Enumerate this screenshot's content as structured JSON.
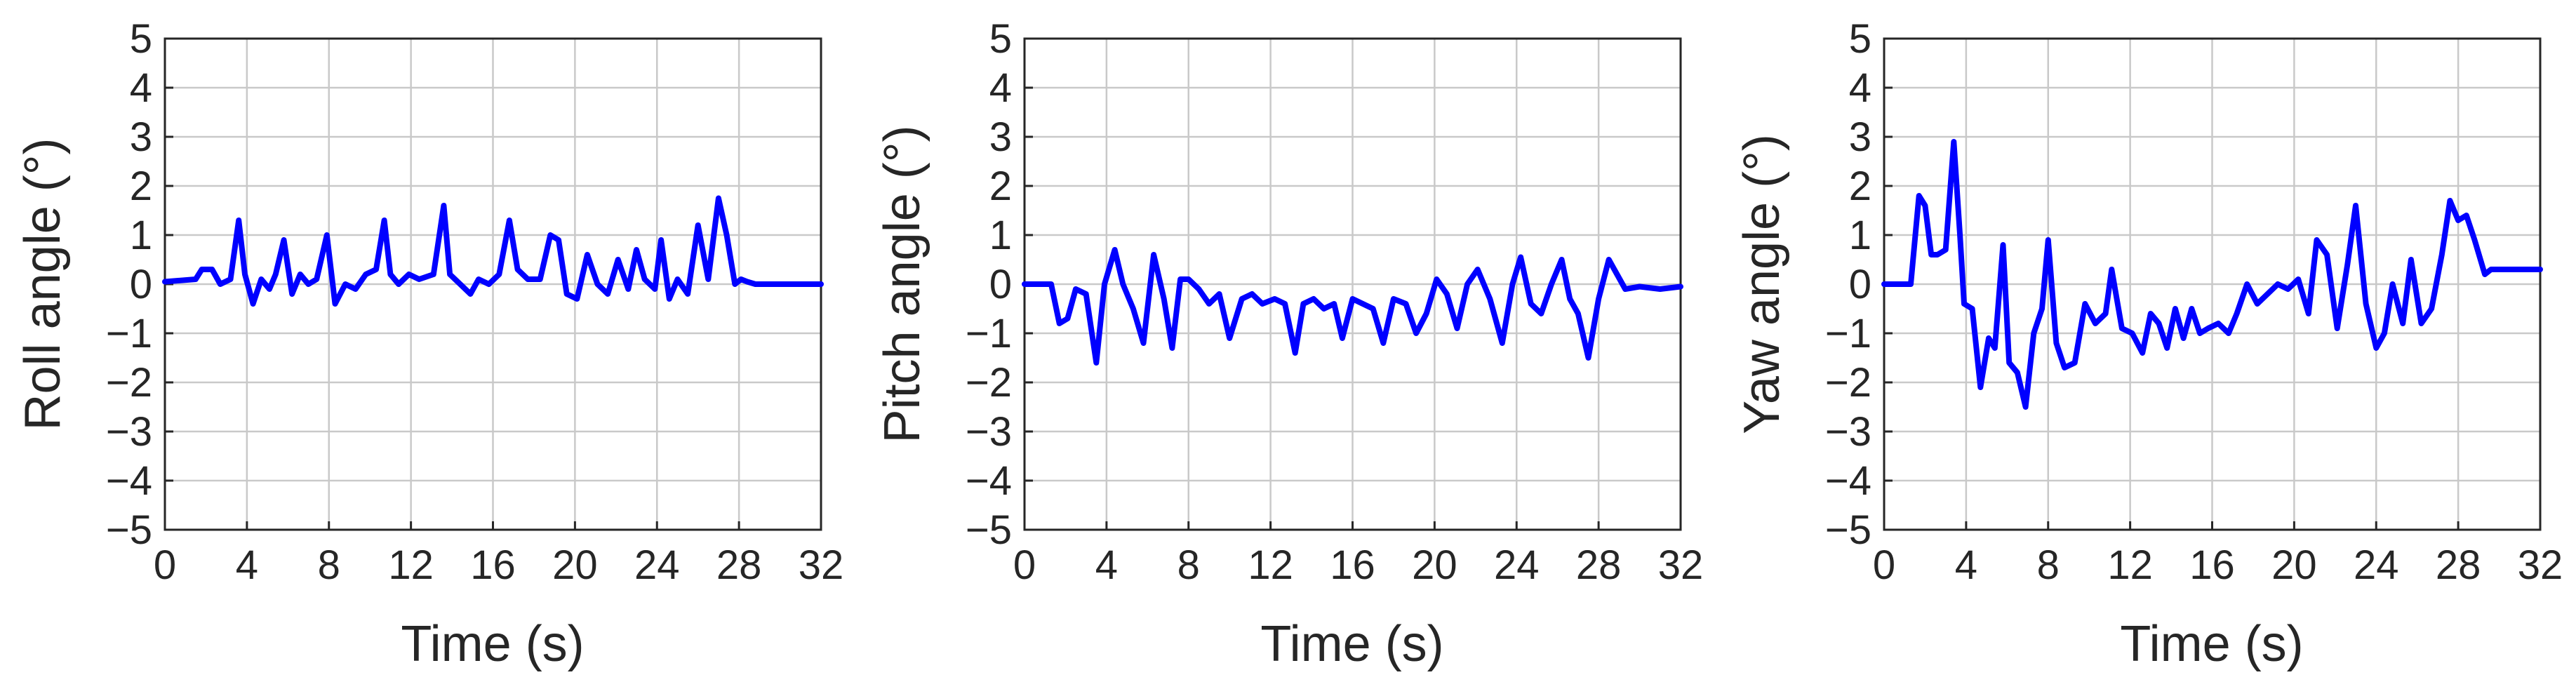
{
  "chart_data": [
    {
      "type": "line",
      "ylabel": "Roll angle (°)",
      "xlabel": "Time (s)",
      "xlim": [
        0,
        32
      ],
      "ylim": [
        -5,
        5
      ],
      "xticks": [
        0,
        4,
        8,
        12,
        16,
        20,
        24,
        28,
        32
      ],
      "yticks": [
        5,
        4,
        3,
        2,
        1,
        0,
        -1,
        -2,
        -3,
        -4,
        -5
      ],
      "ytick_labels": [
        "5",
        "4",
        "3",
        "2",
        "1",
        "0",
        "−1",
        "−2",
        "−3",
        "−4",
        "−5"
      ],
      "grid": true,
      "series_color": "#0000ff",
      "x": [
        0,
        1.5,
        1.8,
        2.3,
        2.7,
        3.2,
        3.6,
        3.9,
        4.3,
        4.7,
        5.1,
        5.4,
        5.8,
        6.2,
        6.6,
        7.0,
        7.4,
        7.9,
        8.3,
        8.8,
        9.3,
        9.8,
        10.3,
        10.7,
        11.0,
        11.4,
        11.9,
        12.4,
        13.1,
        13.6,
        13.9,
        14.4,
        14.9,
        15.3,
        15.8,
        16.3,
        16.8,
        17.2,
        17.7,
        18.3,
        18.8,
        19.2,
        19.6,
        20.1,
        20.6,
        21.1,
        21.6,
        22.1,
        22.6,
        23.0,
        23.4,
        23.9,
        24.2,
        24.6,
        25.0,
        25.5,
        26.0,
        26.5,
        27.0,
        27.4,
        27.8,
        28.1,
        28.4,
        28.8,
        29.3,
        30.0,
        31.0,
        32.0
      ],
      "y": [
        0.05,
        0.1,
        0.3,
        0.3,
        0.0,
        0.1,
        1.3,
        0.2,
        -0.4,
        0.1,
        -0.1,
        0.2,
        0.9,
        -0.2,
        0.2,
        0.0,
        0.1,
        1.0,
        -0.4,
        0.0,
        -0.1,
        0.2,
        0.3,
        1.3,
        0.2,
        0.0,
        0.2,
        0.1,
        0.2,
        1.6,
        0.2,
        0.0,
        -0.2,
        0.1,
        0.0,
        0.2,
        1.3,
        0.3,
        0.1,
        0.1,
        1.0,
        0.9,
        -0.2,
        -0.3,
        0.6,
        0.0,
        -0.2,
        0.5,
        -0.1,
        0.7,
        0.1,
        -0.1,
        0.9,
        -0.3,
        0.1,
        -0.2,
        1.2,
        0.1,
        1.75,
        1.0,
        0.0,
        0.1,
        0.05,
        0.0,
        0.0,
        0.0,
        0.0,
        0.0
      ]
    },
    {
      "type": "line",
      "ylabel": "Pitch angle (°)",
      "xlabel": "Time (s)",
      "xlim": [
        0,
        32
      ],
      "ylim": [
        -5,
        5
      ],
      "xticks": [
        0,
        4,
        8,
        12,
        16,
        20,
        24,
        28,
        32
      ],
      "yticks": [
        5,
        4,
        3,
        2,
        1,
        0,
        -1,
        -2,
        -3,
        -4,
        -5
      ],
      "ytick_labels": [
        "5",
        "4",
        "3",
        "2",
        "1",
        "0",
        "−1",
        "−2",
        "−3",
        "−4",
        "−5"
      ],
      "grid": true,
      "series_color": "#0000ff",
      "x": [
        0,
        1.3,
        1.7,
        2.1,
        2.5,
        3.0,
        3.5,
        3.9,
        4.4,
        4.8,
        5.3,
        5.8,
        6.3,
        6.8,
        7.2,
        7.6,
        8.0,
        8.5,
        9.0,
        9.5,
        10.0,
        10.6,
        11.1,
        11.6,
        12.2,
        12.7,
        13.2,
        13.6,
        14.1,
        14.6,
        15.1,
        15.5,
        16.0,
        16.5,
        17.0,
        17.5,
        18.0,
        18.6,
        19.1,
        19.6,
        20.1,
        20.6,
        21.1,
        21.6,
        22.1,
        22.7,
        23.3,
        23.8,
        24.2,
        24.7,
        25.2,
        25.7,
        26.2,
        26.6,
        27.0,
        27.5,
        28.0,
        28.5,
        28.9,
        29.3,
        30.0,
        31.0,
        32.0
      ],
      "y": [
        0.0,
        0.0,
        -0.8,
        -0.7,
        -0.1,
        -0.2,
        -1.6,
        0.0,
        0.7,
        0.0,
        -0.5,
        -1.2,
        0.6,
        -0.3,
        -1.3,
        0.1,
        0.1,
        -0.1,
        -0.4,
        -0.2,
        -1.1,
        -0.3,
        -0.2,
        -0.4,
        -0.3,
        -0.4,
        -1.4,
        -0.4,
        -0.3,
        -0.5,
        -0.4,
        -1.1,
        -0.3,
        -0.4,
        -0.5,
        -1.2,
        -0.3,
        -0.4,
        -1.0,
        -0.6,
        0.1,
        -0.2,
        -0.9,
        0.0,
        0.3,
        -0.3,
        -1.2,
        0.0,
        0.55,
        -0.4,
        -0.6,
        0.0,
        0.5,
        -0.3,
        -0.6,
        -1.5,
        -0.3,
        0.5,
        0.2,
        -0.1,
        -0.05,
        -0.1,
        -0.05
      ]
    },
    {
      "type": "line",
      "ylabel": "Yaw angle (°)",
      "xlabel": "Time (s)",
      "xlim": [
        0,
        32
      ],
      "ylim": [
        -5,
        5
      ],
      "xticks": [
        0,
        4,
        8,
        12,
        16,
        20,
        24,
        28,
        32
      ],
      "yticks": [
        5,
        4,
        3,
        2,
        1,
        0,
        -1,
        -2,
        -3,
        -4,
        -5
      ],
      "ytick_labels": [
        "5",
        "4",
        "3",
        "2",
        "1",
        "0",
        "−1",
        "−2",
        "−3",
        "−4",
        "−5"
      ],
      "grid": true,
      "series_color": "#0000ff",
      "x": [
        0,
        1.3,
        1.7,
        2.0,
        2.3,
        2.6,
        3.0,
        3.4,
        3.7,
        3.9,
        4.3,
        4.7,
        5.1,
        5.4,
        5.8,
        6.1,
        6.5,
        6.9,
        7.3,
        7.7,
        8.0,
        8.4,
        8.8,
        9.3,
        9.8,
        10.3,
        10.8,
        11.1,
        11.6,
        12.1,
        12.6,
        13.0,
        13.4,
        13.8,
        14.2,
        14.6,
        15.0,
        15.4,
        15.8,
        16.3,
        16.8,
        17.2,
        17.7,
        18.2,
        18.7,
        19.2,
        19.7,
        20.2,
        20.7,
        21.1,
        21.6,
        22.1,
        22.6,
        23.0,
        23.5,
        24.0,
        24.4,
        24.8,
        25.3,
        25.7,
        26.2,
        26.7,
        27.2,
        27.6,
        28.0,
        28.4,
        28.8,
        29.3,
        29.6,
        30.5,
        31.5,
        32.0
      ],
      "y": [
        0.0,
        0.0,
        1.8,
        1.6,
        0.6,
        0.6,
        0.7,
        2.9,
        1.0,
        -0.4,
        -0.5,
        -2.1,
        -1.1,
        -1.3,
        0.8,
        -1.6,
        -1.8,
        -2.5,
        -1.0,
        -0.5,
        0.9,
        -1.2,
        -1.7,
        -1.6,
        -0.4,
        -0.8,
        -0.6,
        0.3,
        -0.9,
        -1.0,
        -1.4,
        -0.6,
        -0.8,
        -1.3,
        -0.5,
        -1.1,
        -0.5,
        -1.0,
        -0.9,
        -0.8,
        -1.0,
        -0.6,
        0.0,
        -0.4,
        -0.2,
        0.0,
        -0.1,
        0.1,
        -0.6,
        0.9,
        0.6,
        -0.9,
        0.4,
        1.6,
        -0.4,
        -1.3,
        -1.0,
        0.0,
        -0.8,
        0.5,
        -0.8,
        -0.5,
        0.6,
        1.7,
        1.3,
        1.4,
        0.9,
        0.2,
        0.3,
        0.3,
        0.3,
        0.3
      ]
    }
  ]
}
